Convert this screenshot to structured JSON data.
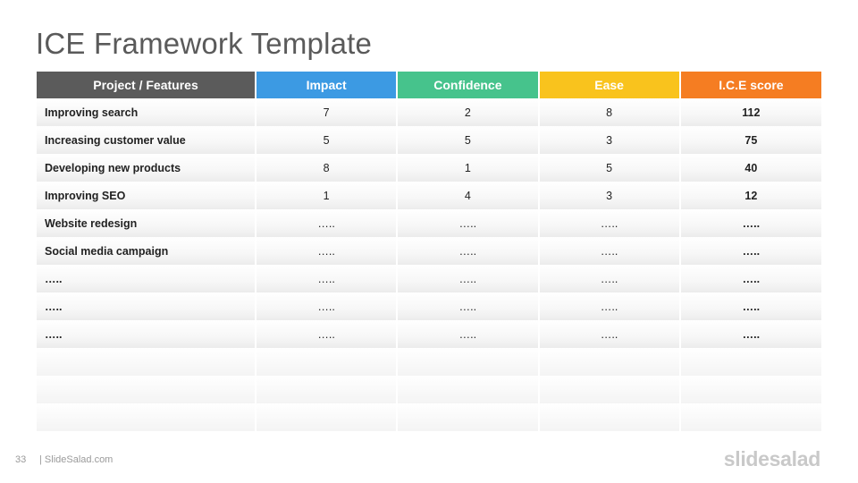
{
  "title": "ICE Framework Template",
  "table": {
    "columns": [
      {
        "label": "Project  / Features",
        "color": "#5b5b5b"
      },
      {
        "label": "Impact",
        "color": "#3c9ae3"
      },
      {
        "label": "Confidence",
        "color": "#46c38c"
      },
      {
        "label": "Ease",
        "color": "#f9c31d"
      },
      {
        "label": "I.C.E score",
        "color": "#f57d22"
      }
    ],
    "rows": [
      {
        "project": "Improving  search",
        "impact": "7",
        "confidence": "2",
        "ease": "8",
        "score": "112"
      },
      {
        "project": "Increasing customer value",
        "impact": "5",
        "confidence": "5",
        "ease": "3",
        "score": "75"
      },
      {
        "project": "Developing  new products",
        "impact": "8",
        "confidence": "1",
        "ease": "5",
        "score": "40"
      },
      {
        "project": "Improving  SEO",
        "impact": "1",
        "confidence": "4",
        "ease": "3",
        "score": "12"
      },
      {
        "project": "Website redesign",
        "impact": "…..",
        "confidence": "…..",
        "ease": "…..",
        "score": "….."
      },
      {
        "project": "Social media campaign",
        "impact": "…..",
        "confidence": "…..",
        "ease": "…..",
        "score": "….."
      },
      {
        "project": "…..",
        "impact": "…..",
        "confidence": "…..",
        "ease": "…..",
        "score": "….."
      },
      {
        "project": "…..",
        "impact": "…..",
        "confidence": "…..",
        "ease": "…..",
        "score": "….."
      },
      {
        "project": "…..",
        "impact": "…..",
        "confidence": "…..",
        "ease": "…..",
        "score": "….."
      },
      {
        "project": "",
        "impact": "",
        "confidence": "",
        "ease": "",
        "score": ""
      },
      {
        "project": "",
        "impact": "",
        "confidence": "",
        "ease": "",
        "score": ""
      },
      {
        "project": "",
        "impact": "",
        "confidence": "",
        "ease": "",
        "score": ""
      }
    ]
  },
  "footer": {
    "page_number": "33",
    "site": "| SlideSalad.com",
    "logo": "slidesalad"
  }
}
